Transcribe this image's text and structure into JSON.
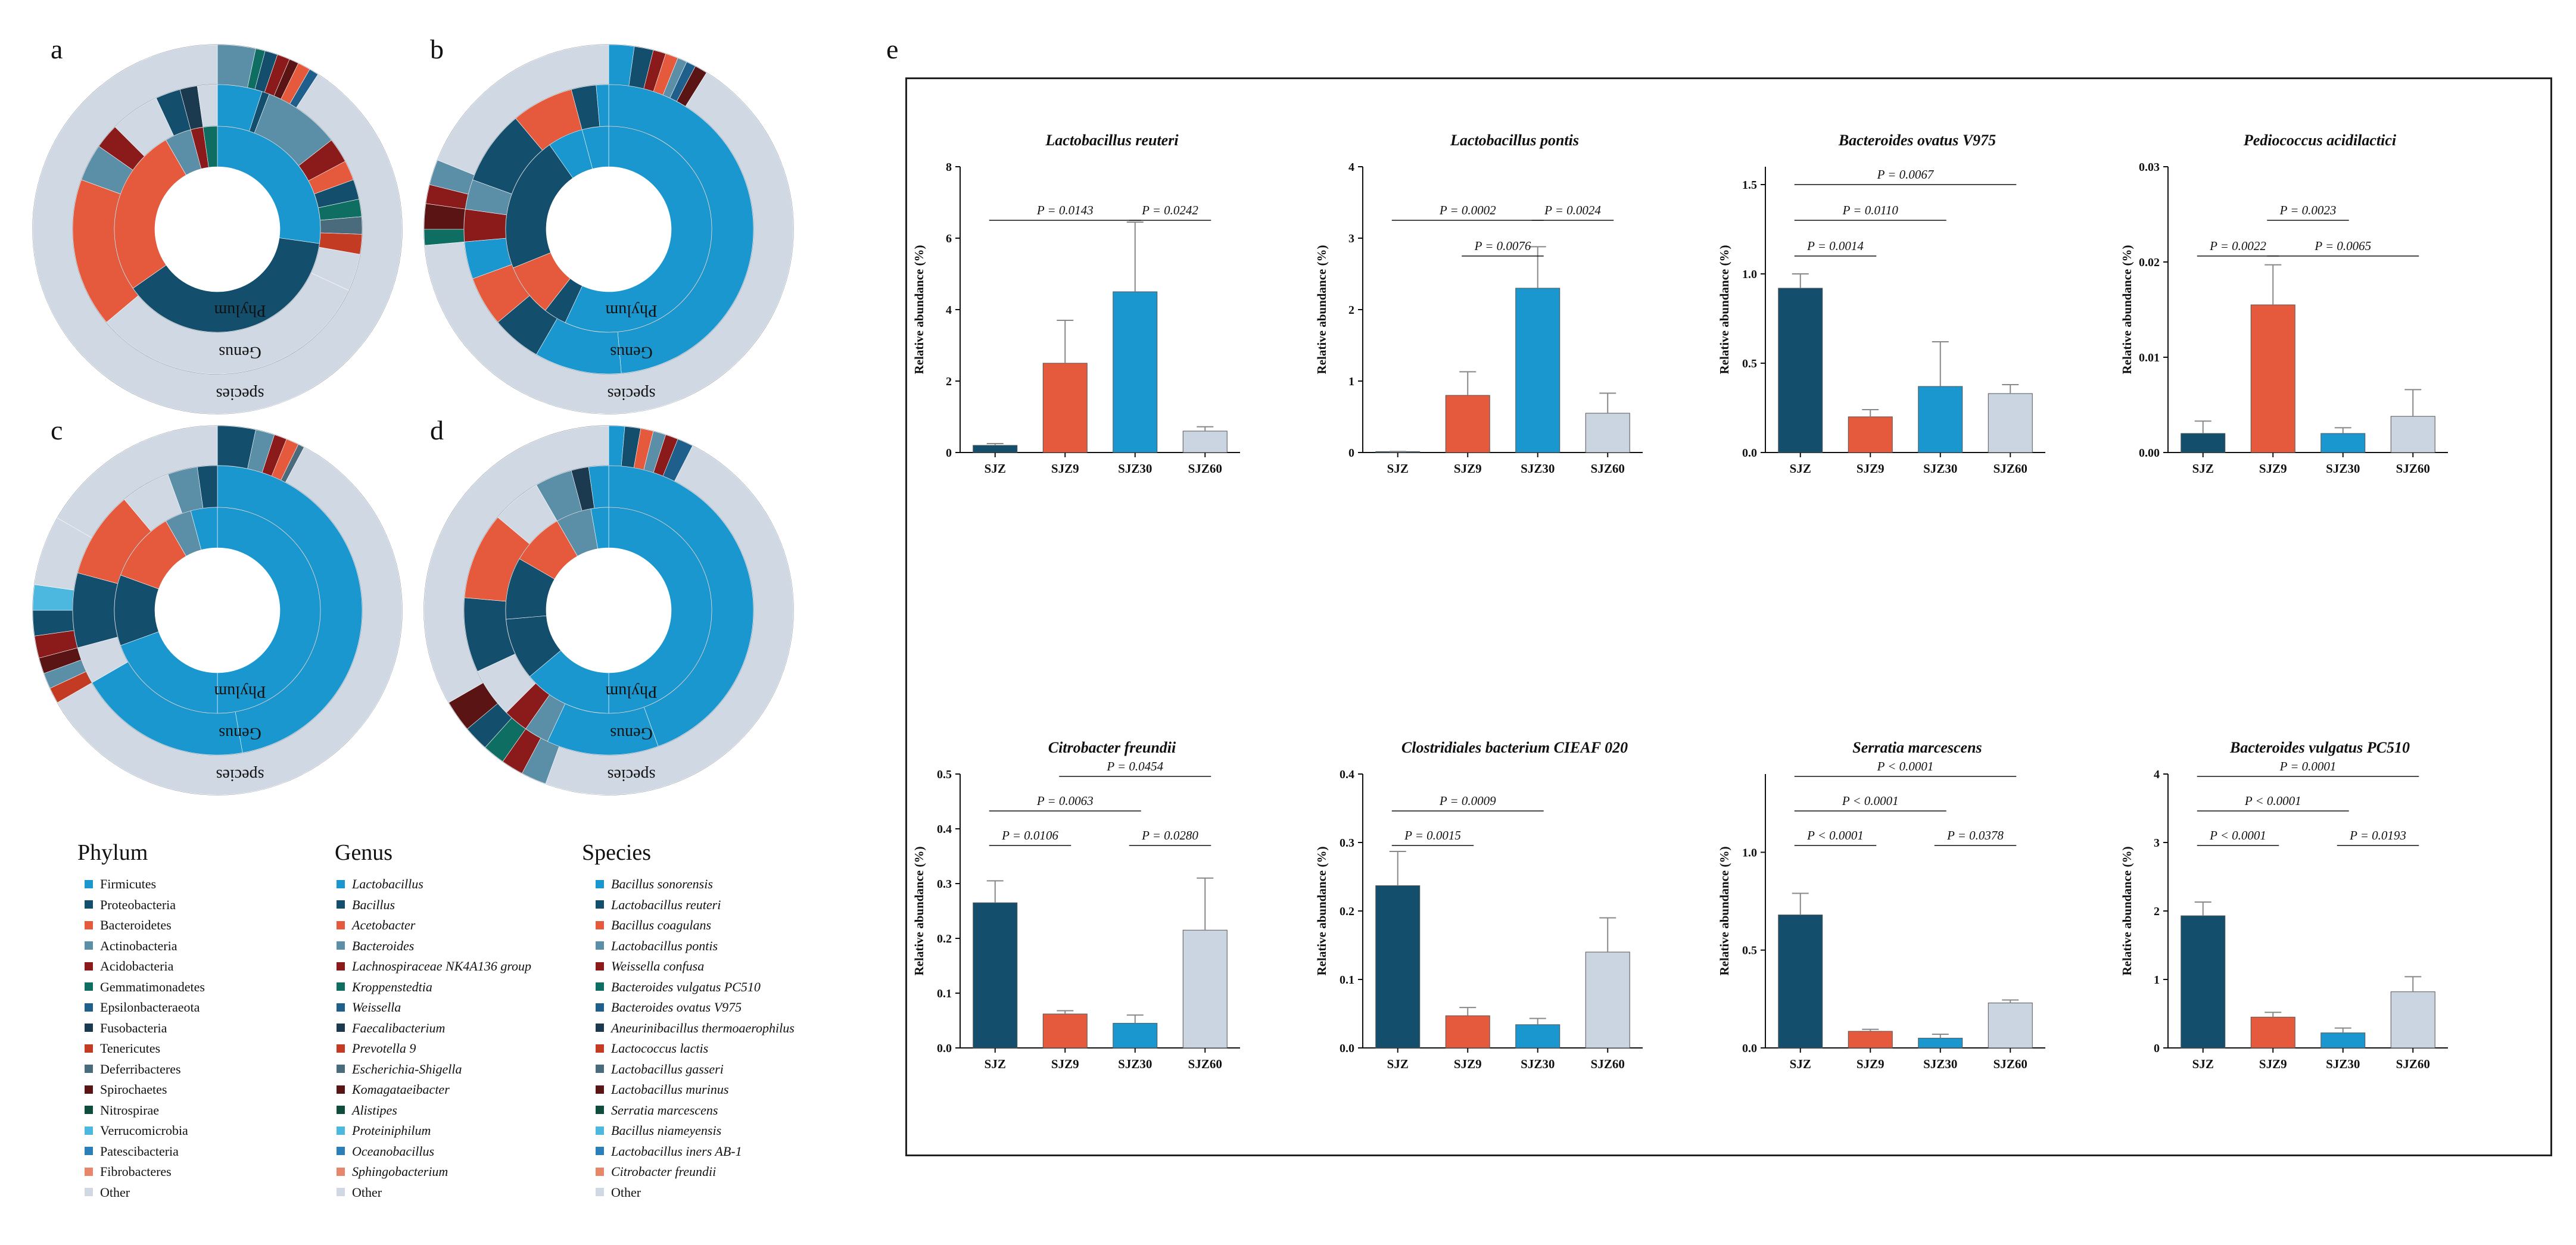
{
  "panel_letters": [
    "a",
    "b",
    "c",
    "d",
    "e"
  ],
  "colors": {
    "SJZ": "#134e6c",
    "SJZ9": "#e55a3c",
    "SJZ30": "#1a97cf",
    "SJZ60": "#cbd5e1",
    "ring_grey": "#cfd8e3"
  },
  "rings": [
    {
      "letter": "a",
      "phylum_label": "Phylum",
      "genus_label": "Genus",
      "species_label": "species"
    },
    {
      "letter": "b",
      "phylum_label": "Phylum",
      "genus_label": "Genus",
      "species_label": "species"
    },
    {
      "letter": "c",
      "phylum_label": "Phylum",
      "genus_label": "Genus",
      "species_label": "species"
    },
    {
      "letter": "d",
      "phylum_label": "Phylum",
      "genus_label": "Genus",
      "species_label": "species"
    }
  ],
  "legend": {
    "phylum": {
      "title": "Phylum",
      "items": [
        {
          "label": "Firmicutes",
          "color": "#1a97cf"
        },
        {
          "label": "Proteobacteria",
          "color": "#134e6c"
        },
        {
          "label": "Bacteroidetes",
          "color": "#e55a3c"
        },
        {
          "label": "Actinobacteria",
          "color": "#5b8fa8"
        },
        {
          "label": "Acidobacteria",
          "color": "#8b1a1a"
        },
        {
          "label": "Gemmatimonadetes",
          "color": "#0f6e62"
        },
        {
          "label": "Epsilonbacteraeota",
          "color": "#1f5f8b"
        },
        {
          "label": "Fusobacteria",
          "color": "#1c3a4f"
        },
        {
          "label": "Tenericutes",
          "color": "#c23b22"
        },
        {
          "label": "Deferribacteres",
          "color": "#4a6b7c"
        },
        {
          "label": "Spirochaetes",
          "color": "#5a1414"
        },
        {
          "label": "Nitrospirae",
          "color": "#0e4d3c"
        },
        {
          "label": "Verrucomicrobia",
          "color": "#4cb8e0"
        },
        {
          "label": "Patescibacteria",
          "color": "#2b7fb8"
        },
        {
          "label": "Fibrobacteres",
          "color": "#e8866c"
        },
        {
          "label": "Other",
          "color": "#cfd8e3"
        }
      ]
    },
    "genus": {
      "title": "Genus",
      "items": [
        {
          "label": "Lactobacillus",
          "color": "#1a97cf"
        },
        {
          "label": "Bacillus",
          "color": "#134e6c"
        },
        {
          "label": "Acetobacter",
          "color": "#e55a3c"
        },
        {
          "label": "Bacteroides",
          "color": "#5b8fa8"
        },
        {
          "label": "Lachnospiraceae NK4A136 group",
          "color": "#8b1a1a"
        },
        {
          "label": "Kroppenstedtia",
          "color": "#0f6e62"
        },
        {
          "label": "Weissella",
          "color": "#1f5f8b"
        },
        {
          "label": "Faecalibacterium",
          "color": "#1c3a4f"
        },
        {
          "label": "Prevotella 9",
          "color": "#c23b22"
        },
        {
          "label": "Escherichia-Shigella",
          "color": "#4a6b7c"
        },
        {
          "label": "Komagataeibacter",
          "color": "#5a1414"
        },
        {
          "label": "Alistipes",
          "color": "#0e4d3c"
        },
        {
          "label": "Proteiniphilum",
          "color": "#4cb8e0"
        },
        {
          "label": "Oceanobacillus",
          "color": "#2b7fb8"
        },
        {
          "label": "Sphingobacterium",
          "color": "#e8866c"
        },
        {
          "label": "Other",
          "color": "#cfd8e3"
        }
      ]
    },
    "species": {
      "title": "Species",
      "items": [
        {
          "label": "Bacillus sonorensis",
          "color": "#1a97cf"
        },
        {
          "label": "Lactobacillus reuteri",
          "color": "#134e6c"
        },
        {
          "label": "Bacillus coagulans",
          "color": "#e55a3c"
        },
        {
          "label": "Lactobacillus pontis",
          "color": "#5b8fa8"
        },
        {
          "label": "Weissella confusa",
          "color": "#8b1a1a"
        },
        {
          "label": "Bacteroides vulgatus PC510",
          "color": "#0f6e62"
        },
        {
          "label": "Bacteroides ovatus V975",
          "color": "#1f5f8b"
        },
        {
          "label": "Aneurinibacillus thermoaerophilus",
          "color": "#1c3a4f"
        },
        {
          "label": "Lactococcus lactis",
          "color": "#c23b22"
        },
        {
          "label": "Lactobacillus gasseri",
          "color": "#4a6b7c"
        },
        {
          "label": "Lactobacillus murinus",
          "color": "#5a1414"
        },
        {
          "label": "Serratia marcescens",
          "color": "#0e4d3c"
        },
        {
          "label": "Bacillus niameyensis",
          "color": "#4cb8e0"
        },
        {
          "label": "Lactobacillus iners AB-1",
          "color": "#2b7fb8"
        },
        {
          "label": "Citrobacter freundii",
          "color": "#e8866c"
        },
        {
          "label": "Other",
          "color": "#cfd8e3"
        }
      ]
    }
  },
  "chart_data": [
    {
      "type": "bar",
      "title": "Lactobacillus reuteri",
      "ylabel": "Relative abundance (%)",
      "categories": [
        "SJZ",
        "SJZ9",
        "SJZ30",
        "SJZ60"
      ],
      "values": [
        0.2,
        2.5,
        4.5,
        0.6
      ],
      "errors": [
        0.05,
        1.2,
        1.95,
        0.12
      ],
      "ylim": [
        0,
        8
      ],
      "yticks": [
        "0",
        "2",
        "4",
        "6",
        "8"
      ],
      "ytick_values": [
        0,
        2,
        4,
        6,
        8
      ],
      "comparisons": [
        {
          "from": 0,
          "to": 2,
          "label": "P = 0.0143",
          "level": 1
        },
        {
          "from": 2,
          "to": 3,
          "label": "P = 0.0242",
          "level": 1
        }
      ]
    },
    {
      "type": "bar",
      "title": "Lactobacillus pontis",
      "ylabel": "Relative abundance (%)",
      "categories": [
        "SJZ",
        "SJZ9",
        "SJZ30",
        "SJZ60"
      ],
      "values": [
        0.01,
        0.8,
        2.3,
        0.55
      ],
      "errors": [
        0.005,
        0.33,
        0.58,
        0.28
      ],
      "ylim": [
        0,
        4
      ],
      "yticks": [
        "0",
        "1",
        "2",
        "3",
        "4"
      ],
      "ytick_values": [
        0,
        1,
        2,
        3,
        4
      ],
      "comparisons": [
        {
          "from": 1,
          "to": 2,
          "label": "P = 0.0076",
          "level": 0
        },
        {
          "from": 0,
          "to": 2,
          "label": "P = 0.0002",
          "level": 1
        },
        {
          "from": 2,
          "to": 3,
          "label": "P = 0.0024",
          "level": 1
        }
      ]
    },
    {
      "type": "bar",
      "title": "Bacteroides ovatus V975",
      "ylabel": "Relative abundance (%)",
      "categories": [
        "SJZ",
        "SJZ9",
        "SJZ30",
        "SJZ60"
      ],
      "values": [
        0.92,
        0.2,
        0.37,
        0.33
      ],
      "errors": [
        0.08,
        0.04,
        0.25,
        0.05
      ],
      "ylim": [
        0,
        1.6
      ],
      "yticks": [
        "0.0",
        "0.5",
        "1.0",
        "1.5"
      ],
      "ytick_values": [
        0,
        0.5,
        1.0,
        1.5
      ],
      "comparisons": [
        {
          "from": 0,
          "to": 1,
          "label": "P = 0.0014",
          "level": 0
        },
        {
          "from": 0,
          "to": 2,
          "label": "P = 0.0110",
          "level": 1
        },
        {
          "from": 0,
          "to": 3,
          "label": "P = 0.0067",
          "level": 2
        }
      ]
    },
    {
      "type": "bar",
      "title": "Pediococcus acidilactici",
      "ylabel": "Relative abundance (%)",
      "categories": [
        "SJZ",
        "SJZ9",
        "SJZ30",
        "SJZ60"
      ],
      "values": [
        0.002,
        0.0155,
        0.002,
        0.0038
      ],
      "errors": [
        0.0013,
        0.0042,
        0.0006,
        0.0028
      ],
      "ylim": [
        0,
        0.03
      ],
      "yticks": [
        "0.00",
        "0.01",
        "0.02",
        "0.03"
      ],
      "ytick_values": [
        0,
        0.01,
        0.02,
        0.03
      ],
      "comparisons": [
        {
          "from": 0,
          "to": 1,
          "label": "P = 0.0022",
          "level": 0
        },
        {
          "from": 1,
          "to": 3,
          "label": "P = 0.0065",
          "level": 0
        },
        {
          "from": 1,
          "to": 2,
          "label": "P = 0.0023",
          "level": 1
        }
      ]
    },
    {
      "type": "bar",
      "title": "Citrobacter freundii",
      "ylabel": "Relative abundance (%)",
      "categories": [
        "SJZ",
        "SJZ9",
        "SJZ30",
        "SJZ60"
      ],
      "values": [
        0.265,
        0.062,
        0.045,
        0.215
      ],
      "errors": [
        0.04,
        0.006,
        0.015,
        0.095
      ],
      "ylim": [
        0,
        0.5
      ],
      "yticks": [
        "0.0",
        "0.1",
        "0.2",
        "0.3",
        "0.4",
        "0.5"
      ],
      "ytick_values": [
        0,
        0.1,
        0.2,
        0.3,
        0.4,
        0.5
      ],
      "comparisons": [
        {
          "from": 0,
          "to": 1,
          "label": "P = 0.0106",
          "level": 0
        },
        {
          "from": 2,
          "to": 3,
          "label": "P = 0.0280",
          "level": 0
        },
        {
          "from": 0,
          "to": 2,
          "label": "P = 0.0063",
          "level": 1
        },
        {
          "from": 1,
          "to": 3,
          "label": "P = 0.0454",
          "level": 2
        }
      ]
    },
    {
      "type": "bar",
      "title": "Clostridiales bacterium CIEAF 020",
      "ylabel": "Relative abundance (%)",
      "categories": [
        "SJZ",
        "SJZ9",
        "SJZ30",
        "SJZ60"
      ],
      "values": [
        0.237,
        0.047,
        0.034,
        0.14
      ],
      "errors": [
        0.05,
        0.012,
        0.009,
        0.05
      ],
      "ylim": [
        0,
        0.4
      ],
      "yticks": [
        "0.0",
        "0.1",
        "0.2",
        "0.3",
        "0.4"
      ],
      "ytick_values": [
        0,
        0.1,
        0.2,
        0.3,
        0.4
      ],
      "comparisons": [
        {
          "from": 0,
          "to": 1,
          "label": "P = 0.0015",
          "level": 0
        },
        {
          "from": 0,
          "to": 2,
          "label": "P = 0.0009",
          "level": 1
        }
      ]
    },
    {
      "type": "bar",
      "title": "Serratia marcescens",
      "ylabel": "Relative abundance (%)",
      "categories": [
        "SJZ",
        "SJZ9",
        "SJZ30",
        "SJZ60"
      ],
      "values": [
        0.68,
        0.085,
        0.05,
        0.23
      ],
      "errors": [
        0.11,
        0.01,
        0.02,
        0.015
      ],
      "ylim": [
        0,
        1.4
      ],
      "yticks": [
        "0.0",
        "0.5",
        "1.0"
      ],
      "ytick_values": [
        0,
        0.5,
        1.0
      ],
      "comparisons": [
        {
          "from": 0,
          "to": 1,
          "label": "P < 0.0001",
          "level": 0
        },
        {
          "from": 2,
          "to": 3,
          "label": "P = 0.0378",
          "level": 0
        },
        {
          "from": 0,
          "to": 2,
          "label": "P < 0.0001",
          "level": 1
        },
        {
          "from": 0,
          "to": 3,
          "label": "P < 0.0001",
          "level": 2
        }
      ]
    },
    {
      "type": "bar",
      "title": "Bacteroides vulgatus PC510",
      "ylabel": "Relative abundance (%)",
      "categories": [
        "SJZ",
        "SJZ9",
        "SJZ30",
        "SJZ60"
      ],
      "values": [
        1.93,
        0.45,
        0.22,
        0.82
      ],
      "errors": [
        0.2,
        0.07,
        0.07,
        0.22
      ],
      "ylim": [
        0,
        4
      ],
      "yticks": [
        "0",
        "1",
        "2",
        "3",
        "4"
      ],
      "ytick_values": [
        0,
        1,
        2,
        3,
        4
      ],
      "comparisons": [
        {
          "from": 0,
          "to": 1,
          "label": "P < 0.0001",
          "level": 0
        },
        {
          "from": 2,
          "to": 3,
          "label": "P = 0.0193",
          "level": 0
        },
        {
          "from": 0,
          "to": 2,
          "label": "P < 0.0001",
          "level": 1
        },
        {
          "from": 0,
          "to": 3,
          "label": "P = 0.0001",
          "level": 2
        }
      ]
    }
  ]
}
